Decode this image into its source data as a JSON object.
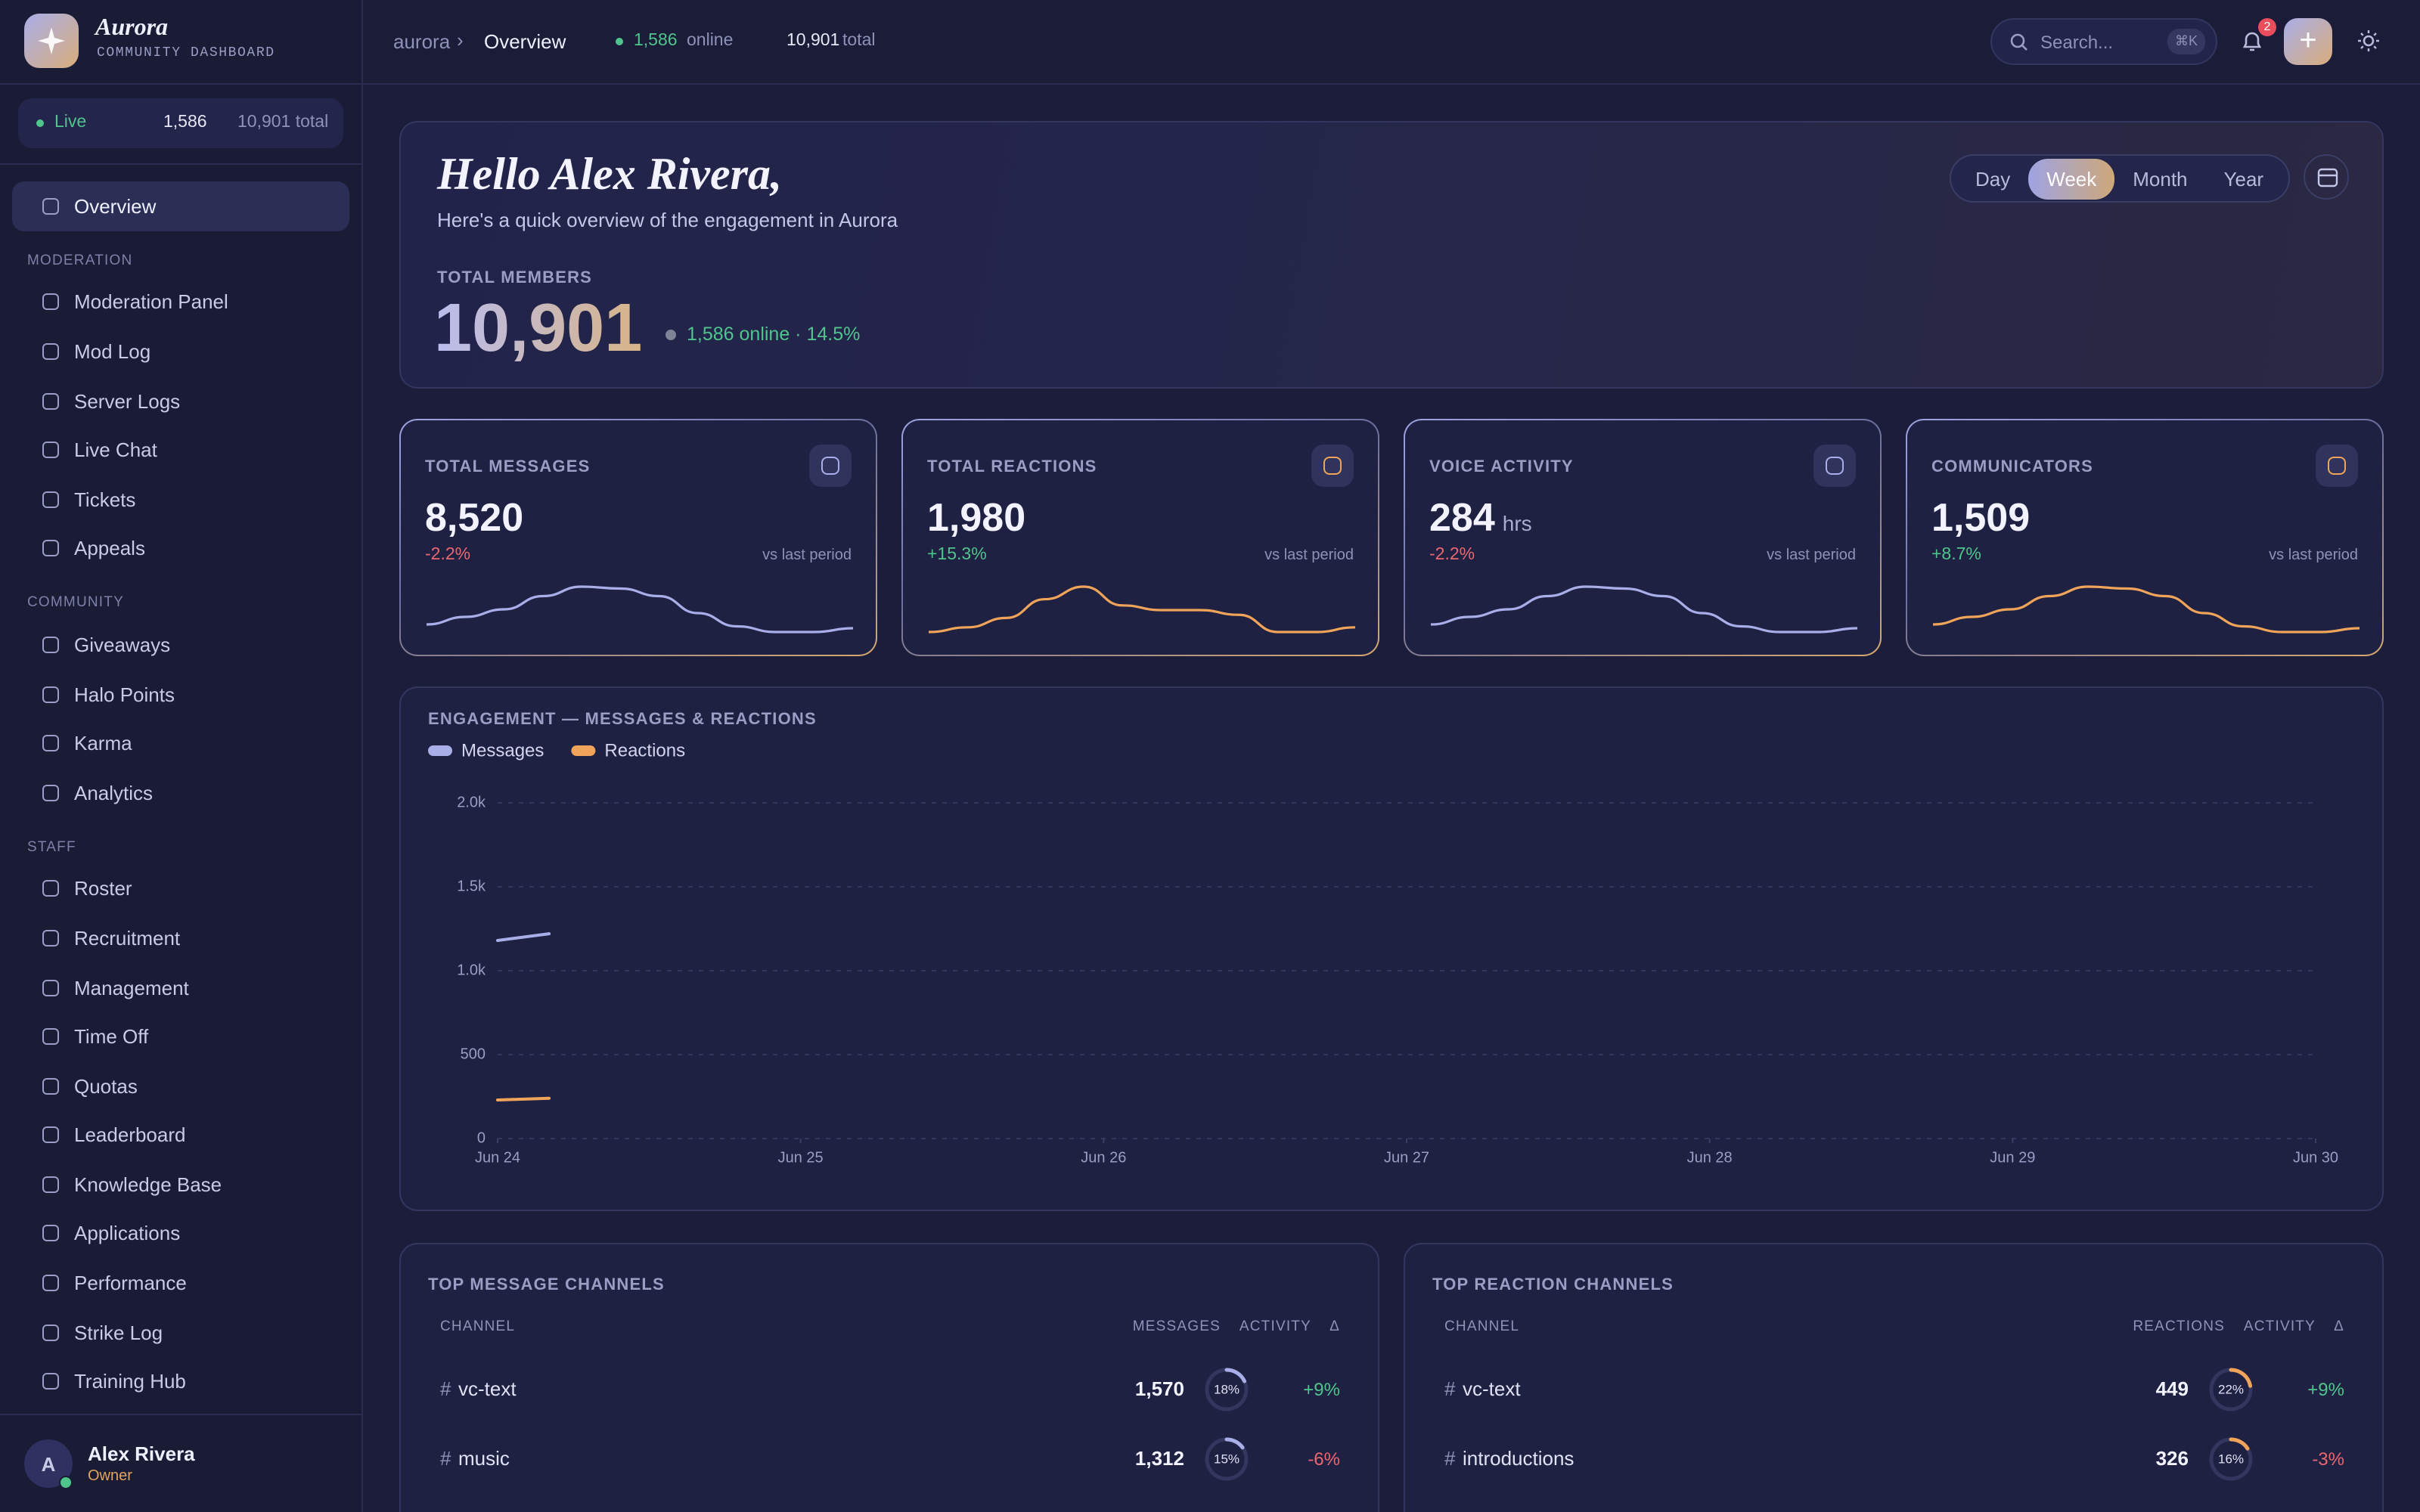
{
  "sidebar": {
    "brand": {
      "name": "Aurora",
      "subtitle": "COMMUNITY DASHBOARD"
    },
    "live": {
      "label": "Live",
      "online": "1,586",
      "total": "10,901 total"
    },
    "sections": [
      {
        "items": [
          "Overview"
        ]
      },
      {
        "title": "MODERATION",
        "items": [
          "Moderation Panel",
          "Mod Log",
          "Server Logs",
          "Live Chat",
          "Tickets",
          "Appeals"
        ]
      },
      {
        "title": "COMMUNITY",
        "items": [
          "Giveaways",
          "Halo Points",
          "Karma",
          "Analytics"
        ]
      },
      {
        "title": "STAFF",
        "items": [
          "Roster",
          "Recruitment",
          "Management",
          "Time Off",
          "Quotas",
          "Leaderboard",
          "Knowledge Base",
          "Applications",
          "Performance",
          "Strike Log",
          "Training Hub"
        ]
      }
    ],
    "user": {
      "initial": "A",
      "name": "Alex Rivera",
      "role": "Owner"
    }
  },
  "topbar": {
    "breadcrumb": [
      "aurora",
      "Overview"
    ],
    "online_count": "1,586",
    "online_label": "online",
    "total_count": "10,901",
    "total_label": "total",
    "search": "Search...",
    "shortcut": "⌘K",
    "notifications": "2"
  },
  "hero": {
    "greeting": "Hello Alex Rivera,",
    "subtitle": "Here's a quick overview of the engagement in Aurora",
    "ranges": [
      "Day",
      "Week",
      "Month",
      "Year"
    ],
    "active_range": 1,
    "total_label": "TOTAL MEMBERS",
    "total": "10,901",
    "online": "1,586 online · 14.5%"
  },
  "stats": [
    {
      "label": "TOTAL MESSAGES",
      "value": "8,520",
      "change": "-2.2%",
      "note": "vs last period",
      "color": "#a9aee8",
      "spark": [
        4,
        8,
        12,
        19,
        24,
        23,
        19,
        10,
        3,
        0,
        0,
        2
      ]
    },
    {
      "label": "TOTAL REACTIONS",
      "value": "1,980",
      "change": "+15.3%",
      "note": "vs last period",
      "color": "#f0a45a",
      "spark": [
        3,
        6,
        12,
        24,
        32,
        20,
        17,
        17,
        14,
        3,
        3,
        6
      ]
    },
    {
      "label": "VOICE ACTIVITY",
      "value": "284",
      "unit": "hrs",
      "change": "-2.2%",
      "note": "vs last period",
      "color": "#a9aee8",
      "spark": [
        4,
        8,
        12,
        19,
        24,
        23,
        19,
        10,
        3,
        0,
        0,
        2
      ]
    },
    {
      "label": "COMMUNICATORS",
      "value": "1,509",
      "change": "+8.7%",
      "note": "vs last period",
      "color": "#f0a45a",
      "spark": [
        4,
        8,
        12,
        19,
        24,
        23,
        19,
        10,
        3,
        0,
        0,
        2
      ]
    }
  ],
  "chart_data": {
    "type": "line",
    "title": "ENGAGEMENT — MESSAGES & REACTIONS",
    "xlim": [
      0,
      6
    ],
    "xticks": [
      {
        "value": 0,
        "label": "Jun 24"
      },
      {
        "value": 1,
        "label": "Jun 25"
      },
      {
        "value": 2,
        "label": "Jun 26"
      },
      {
        "value": 3,
        "label": "Jun 27"
      },
      {
        "value": 4,
        "label": "Jun 28"
      },
      {
        "value": 5,
        "label": "Jun 29"
      },
      {
        "value": 6,
        "label": "Jun 30"
      }
    ],
    "ylim": [
      0,
      2000
    ],
    "yticks": [
      0,
      500,
      {
        "value": 1000,
        "label": "1.0k"
      },
      {
        "value": 1500,
        "label": "1.5k"
      },
      {
        "value": 2000,
        "label": "2.0k"
      }
    ],
    "grid": true,
    "series": [
      {
        "name": "Messages",
        "color": "#a9aee8",
        "x": [
          0,
          0.17
        ],
        "values": [
          1180,
          1220
        ]
      },
      {
        "name": "Reactions",
        "color": "#f0a45a",
        "x": [
          0,
          0.17
        ],
        "values": [
          230,
          240
        ]
      }
    ]
  },
  "tables": [
    {
      "title": "TOP MESSAGE CHANNELS",
      "color": "#a9aee8",
      "columns": [
        "CHANNEL",
        "MESSAGES",
        "ACTIVITY",
        "Δ"
      ],
      "rows": [
        {
          "channel": "vc-text",
          "count": "1,570",
          "activity": 18,
          "activity_label": "18%",
          "delta": "+9%"
        },
        {
          "channel": "music",
          "count": "1,312",
          "activity": 15,
          "activity_label": "15%",
          "delta": "-6%"
        }
      ]
    },
    {
      "title": "TOP REACTION CHANNELS",
      "color": "#f0a45a",
      "columns": [
        "CHANNEL",
        "REACTIONS",
        "ACTIVITY",
        "Δ"
      ],
      "rows": [
        {
          "channel": "vc-text",
          "count": "449",
          "activity": 22,
          "activity_label": "22%",
          "delta": "+9%"
        },
        {
          "channel": "introductions",
          "count": "326",
          "activity": 16,
          "activity_label": "16%",
          "delta": "-3%"
        }
      ]
    }
  ]
}
